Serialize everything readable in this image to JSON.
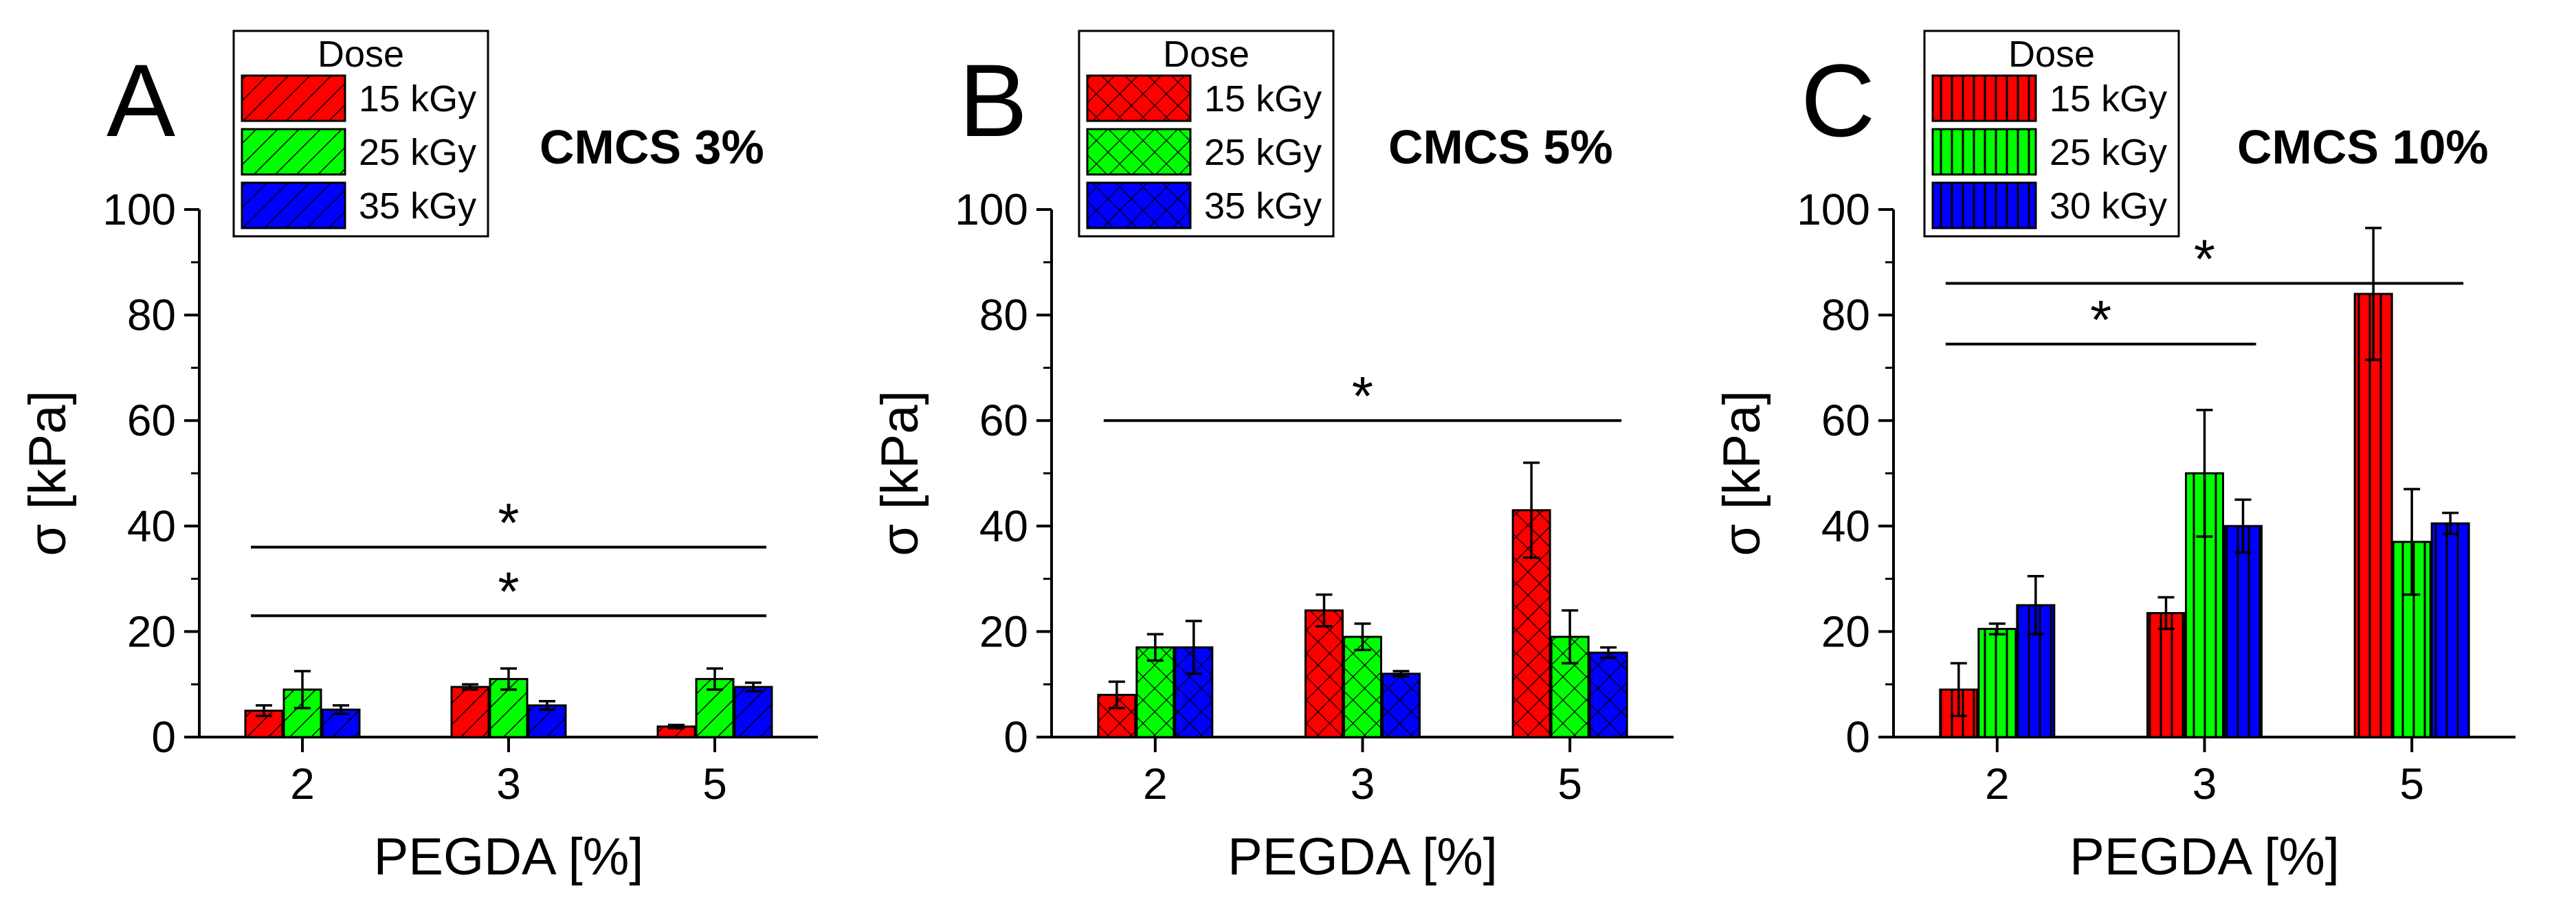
{
  "figure": {
    "panels": [
      {
        "letter": "A",
        "title": "CMCS 3%"
      },
      {
        "letter": "B",
        "title": "CMCS 5%"
      },
      {
        "letter": "C",
        "title": "CMCS 10%"
      }
    ]
  },
  "colors": {
    "dose1": "#ff0000",
    "dose2": "#00ff00",
    "dose3": "#0000ff",
    "line": "#000000"
  },
  "chart_data": [
    {
      "type": "bar",
      "panel_letter": "A",
      "title": "CMCS 3%",
      "xlabel": "PEGDA [%]",
      "ylabel": "σ [kPa]",
      "ylim": [
        0,
        100
      ],
      "yticks": [
        0,
        20,
        40,
        60,
        80,
        100
      ],
      "categories": [
        "2",
        "3",
        "5"
      ],
      "hatch": "diagonal",
      "legend_title": "Dose",
      "legend_position": "top-left",
      "series": [
        {
          "name": "15 kGy",
          "values": [
            5,
            9.5,
            2
          ],
          "errors": [
            1,
            0.5,
            0.3
          ]
        },
        {
          "name": "25 kGy",
          "values": [
            9,
            11,
            11
          ],
          "errors": [
            3.5,
            2,
            2
          ]
        },
        {
          "name": "35 kGy",
          "values": [
            5.2,
            6,
            9.5
          ],
          "errors": [
            0.8,
            0.8,
            0.8
          ]
        }
      ],
      "significance": [
        {
          "from": "2",
          "to": "5",
          "y": 23,
          "label": "*"
        },
        {
          "from": "2",
          "to": "5",
          "y": 36,
          "label": "*"
        }
      ]
    },
    {
      "type": "bar",
      "panel_letter": "B",
      "title": "CMCS 5%",
      "xlabel": "PEGDA [%]",
      "ylabel": "σ [kPa]",
      "ylim": [
        0,
        100
      ],
      "yticks": [
        0,
        20,
        40,
        60,
        80,
        100
      ],
      "categories": [
        "2",
        "3",
        "5"
      ],
      "hatch": "crosshatch",
      "legend_title": "Dose",
      "legend_position": "top-left",
      "series": [
        {
          "name": "15 kGy",
          "values": [
            8,
            24,
            43
          ],
          "errors": [
            2.5,
            3,
            9
          ]
        },
        {
          "name": "25 kGy",
          "values": [
            17,
            19,
            19
          ],
          "errors": [
            2.5,
            2.5,
            5
          ]
        },
        {
          "name": "35 kGy",
          "values": [
            17,
            12,
            16
          ],
          "errors": [
            5,
            0.5,
            1
          ]
        }
      ],
      "significance": [
        {
          "from": "2",
          "to": "5",
          "y": 60,
          "label": "*"
        }
      ]
    },
    {
      "type": "bar",
      "panel_letter": "C",
      "title": "CMCS 10%",
      "xlabel": "PEGDA [%]",
      "ylabel": "σ [kPa]",
      "ylim": [
        0,
        100
      ],
      "yticks": [
        0,
        20,
        40,
        60,
        80,
        100
      ],
      "categories": [
        "2",
        "3",
        "5"
      ],
      "hatch": "vertical",
      "legend_title": "Dose",
      "legend_position": "top-left",
      "series": [
        {
          "name": "15 kGy",
          "values": [
            9,
            23.5,
            84
          ],
          "errors": [
            5,
            3,
            12.5
          ]
        },
        {
          "name": "25 kGy",
          "values": [
            20.5,
            50,
            37
          ],
          "errors": [
            1,
            12,
            10
          ]
        },
        {
          "name": "30 kGy",
          "values": [
            25,
            40,
            40.5
          ],
          "errors": [
            5.5,
            5,
            2
          ]
        }
      ],
      "significance": [
        {
          "from": "2",
          "to": "3",
          "y": 74.5,
          "label": "*"
        },
        {
          "from": "2",
          "to": "5",
          "y": 86,
          "label": "*"
        }
      ]
    }
  ]
}
